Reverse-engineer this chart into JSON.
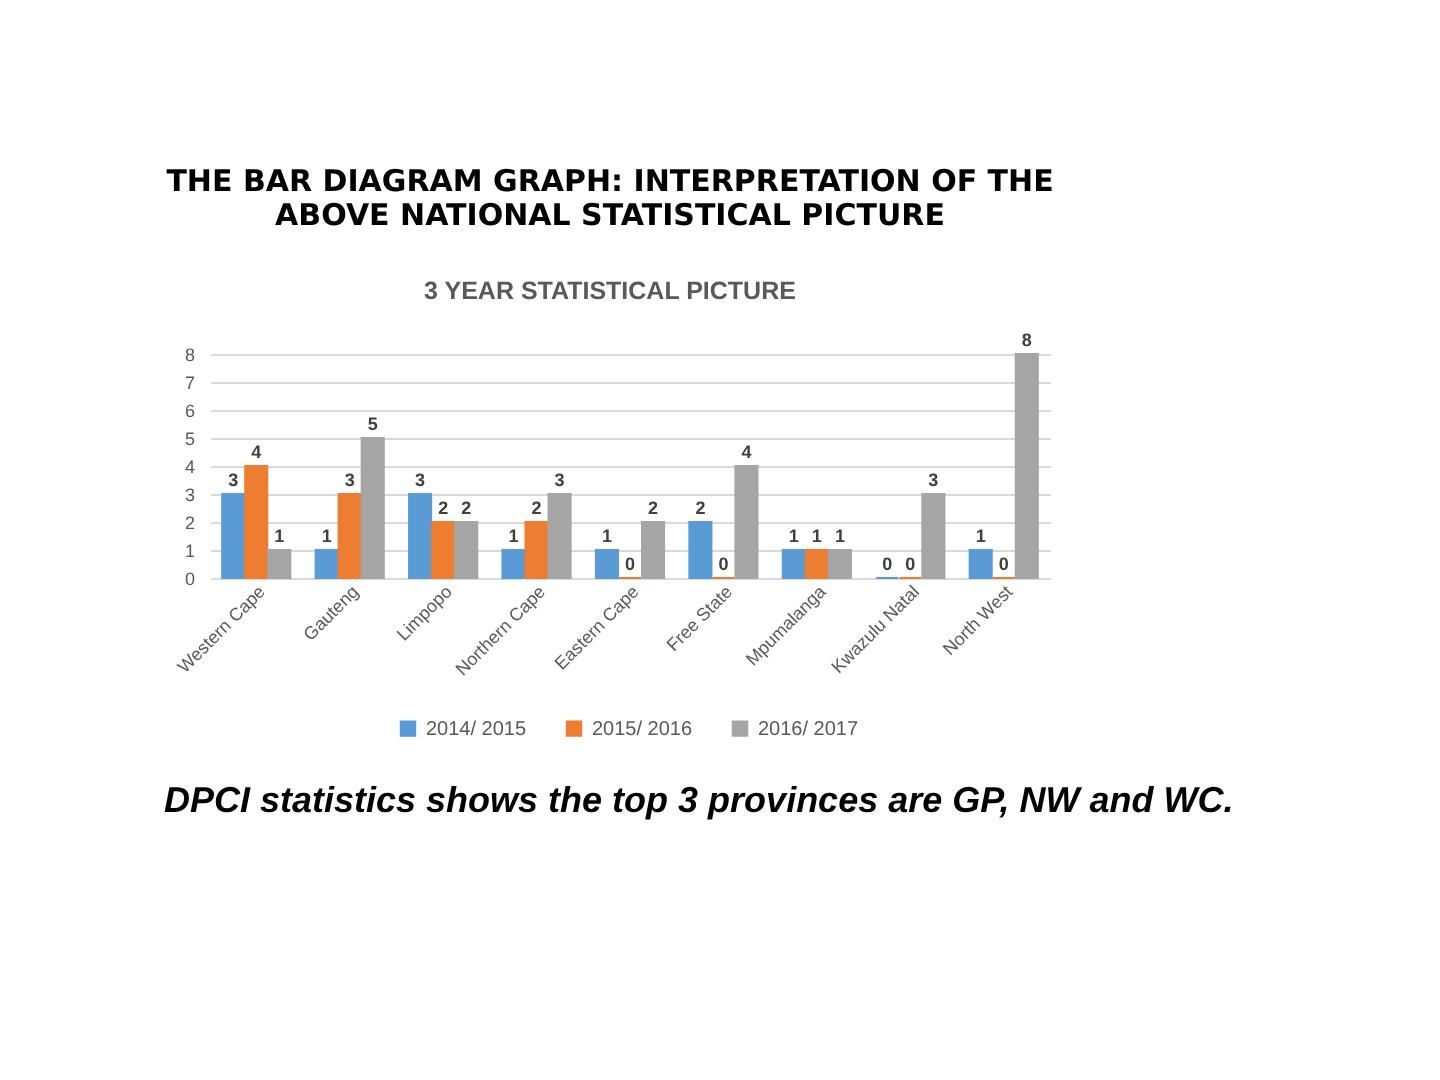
{
  "chart_data": {
    "type": "bar",
    "title": "THE BAR DIAGRAM GRAPH: INTERPRETATION OF THE ABOVE NATIONAL STATISTICAL PICTURE",
    "subtitle": "3 YEAR STATISTICAL PICTURE",
    "categories": [
      "Western Cape",
      "Gauteng",
      "Limpopo",
      "Northern Cape",
      "Eastern Cape",
      "Free State",
      "Mpumalanga",
      "Kwazulu Natal",
      "North West"
    ],
    "series": [
      {
        "name": "2014/ 2015",
        "color": "#5b9bd5",
        "values": [
          3,
          1,
          3,
          1,
          1,
          2,
          1,
          0,
          1
        ]
      },
      {
        "name": "2015/ 2016",
        "color": "#ed7d31",
        "values": [
          4,
          3,
          2,
          2,
          0,
          0,
          1,
          0,
          0
        ]
      },
      {
        "name": "2016/ 2017",
        "color": "#a5a5a5",
        "values": [
          1,
          5,
          2,
          3,
          2,
          4,
          1,
          3,
          8
        ]
      }
    ],
    "ylim": [
      0,
      8
    ],
    "yticks": [
      0,
      1,
      2,
      3,
      4,
      5,
      6,
      7,
      8
    ],
    "grid": "y",
    "legend": "bottom",
    "data_labels": true,
    "annotations": [
      "DPCI statistics shows the top 3 provinces are GP, NW and WC."
    ]
  }
}
